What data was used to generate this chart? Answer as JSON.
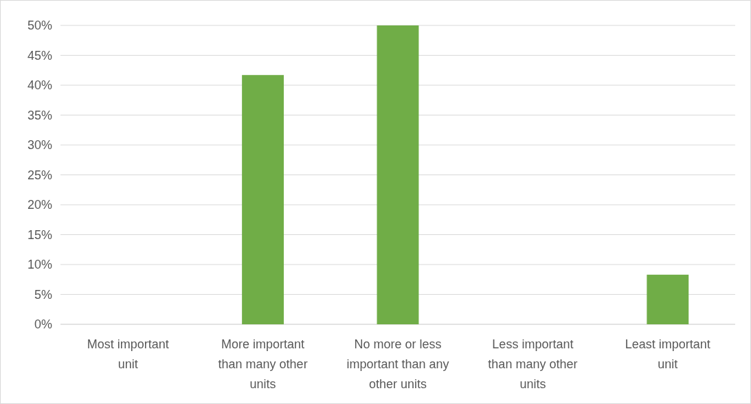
{
  "chart_data": {
    "type": "bar",
    "categories": [
      "Most important unit",
      "More important than many other units",
      "No more or less important than any other units",
      "Less important than many other units",
      "Least important unit"
    ],
    "values": [
      0,
      41.7,
      50,
      0,
      8.3
    ],
    "color": "#70ad47",
    "ylim": [
      0,
      50
    ],
    "yticks": [
      {
        "value": 0,
        "label": "0%"
      },
      {
        "value": 5,
        "label": "5%"
      },
      {
        "value": 10,
        "label": "10%"
      },
      {
        "value": 15,
        "label": "15%"
      },
      {
        "value": 20,
        "label": "20%"
      },
      {
        "value": 25,
        "label": "25%"
      },
      {
        "value": 30,
        "label": "30%"
      },
      {
        "value": 35,
        "label": "35%"
      },
      {
        "value": 40,
        "label": "40%"
      },
      {
        "value": 45,
        "label": "45%"
      },
      {
        "value": 50,
        "label": "50%"
      }
    ],
    "grid": "y"
  }
}
